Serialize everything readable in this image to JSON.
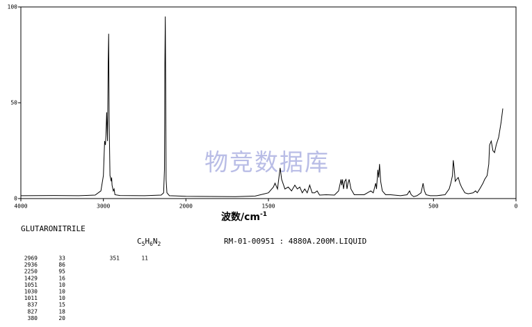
{
  "chart_data": {
    "type": "line",
    "x_label": "波数/cm",
    "x_label_superscript": "-1",
    "watermark": "物竞数据库",
    "xlim": [
      4000,
      0
    ],
    "x_scale_change": 2000,
    "xticks": [
      4000,
      3000,
      2000,
      1500,
      500,
      0
    ],
    "ylim": [
      0,
      100
    ],
    "yticks": [
      0,
      50,
      100
    ],
    "x": [
      4000,
      3600,
      3300,
      3100,
      3030,
      3000,
      2985,
      2975,
      2969,
      2960,
      2950,
      2942,
      2936,
      2930,
      2920,
      2905,
      2900,
      2895,
      2880,
      2870,
      2860,
      2800,
      2500,
      2300,
      2270,
      2260,
      2255,
      2250,
      2245,
      2240,
      2230,
      2200,
      2000,
      1700,
      1580,
      1500,
      1470,
      1460,
      1445,
      1435,
      1429,
      1420,
      1400,
      1380,
      1360,
      1340,
      1325,
      1310,
      1295,
      1280,
      1265,
      1250,
      1235,
      1220,
      1205,
      1190,
      1150,
      1100,
      1075,
      1060,
      1056,
      1051,
      1045,
      1038,
      1030,
      1024,
      1018,
      1011,
      1000,
      980,
      920,
      880,
      865,
      850,
      845,
      837,
      832,
      827,
      820,
      810,
      790,
      760,
      700,
      660,
      645,
      635,
      620,
      600,
      575,
      563,
      555,
      545,
      520,
      480,
      430,
      405,
      395,
      385,
      380,
      375,
      368,
      360,
      350,
      340,
      330,
      310,
      290,
      260,
      245,
      235,
      220,
      200,
      190,
      175,
      165,
      160,
      150,
      140,
      130,
      120,
      105,
      90,
      80
    ],
    "series": [
      {
        "name": "GLUTARONITRILE",
        "color": "#000000",
        "values": [
          1.5,
          1.6,
          1.5,
          1.8,
          4,
          12,
          30,
          28,
          33,
          45,
          30,
          70,
          86,
          40,
          12,
          9,
          11,
          7,
          4,
          5,
          2,
          1.6,
          1.5,
          1.8,
          3,
          15,
          70,
          95,
          60,
          10,
          3,
          1.5,
          1.2,
          1,
          1.3,
          3,
          6,
          8,
          5,
          12,
          16,
          10,
          5,
          6,
          4,
          7,
          5,
          6,
          3,
          5,
          3,
          7,
          3,
          3,
          4,
          1.8,
          2,
          1.8,
          4,
          10,
          7,
          10,
          5,
          9,
          10,
          5,
          8,
          10,
          5,
          2,
          2,
          4,
          3,
          8,
          5,
          15,
          11,
          18,
          9,
          4,
          2,
          2,
          1.5,
          2,
          4,
          2,
          1,
          1.5,
          3,
          8,
          4,
          2,
          1.5,
          1.5,
          2,
          5,
          8,
          12,
          20,
          16,
          9,
          10,
          11,
          8,
          6,
          3,
          2.5,
          3,
          4,
          3,
          5,
          8,
          10,
          12,
          18,
          28,
          30,
          25,
          24,
          28,
          32,
          40,
          47
        ]
      }
    ],
    "compound": "GLUTARONITRILE",
    "formula": [
      "C",
      "5",
      "H",
      "6",
      "N",
      "2"
    ],
    "spectrum_id": "RM-01-00951 : 4880A.200M.LIQUID",
    "peaks": [
      [
        2969,
        33
      ],
      [
        2936,
        86
      ],
      [
        2250,
        95
      ],
      [
        1429,
        16
      ],
      [
        1051,
        10
      ],
      [
        1030,
        10
      ],
      [
        1011,
        10
      ],
      [
        837,
        15
      ],
      [
        827,
        18
      ],
      [
        380,
        20
      ]
    ],
    "peaks_2": [
      [
        351,
        11
      ]
    ]
  }
}
